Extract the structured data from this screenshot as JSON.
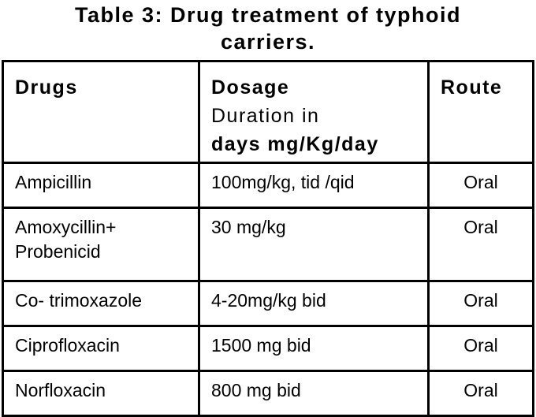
{
  "title": "Table 3: Drug treatment of typhoid carriers.",
  "title_lines": [
    "Table 3: Drug treatment of typhoid",
    "carriers."
  ],
  "columns": [
    "Drugs",
    "Dosage Duration in days mg/Kg/day",
    "Route"
  ],
  "header_dosage_lines": [
    "Dosage",
    "Duration  in",
    "days  mg/Kg/day"
  ],
  "rows": [
    {
      "drug": "Ampicillin",
      "dosage": "100mg/kg, tid /qid",
      "route": "Oral"
    },
    {
      "drug": "Amoxycillin+ Probenicid",
      "drug_lines": [
        "Amoxycillin+",
        "Probenicid"
      ],
      "dosage": "30 mg/kg",
      "route": "Oral"
    },
    {
      "drug": "Co- trimoxazole",
      "dosage": "4-20mg/kg bid",
      "route": "Oral"
    },
    {
      "drug": "Ciprofloxacin",
      "dosage": "1500 mg bid",
      "route": "Oral"
    },
    {
      "drug": "Norfloxacin",
      "dosage": "800 mg bid",
      "route": "Oral"
    }
  ]
}
